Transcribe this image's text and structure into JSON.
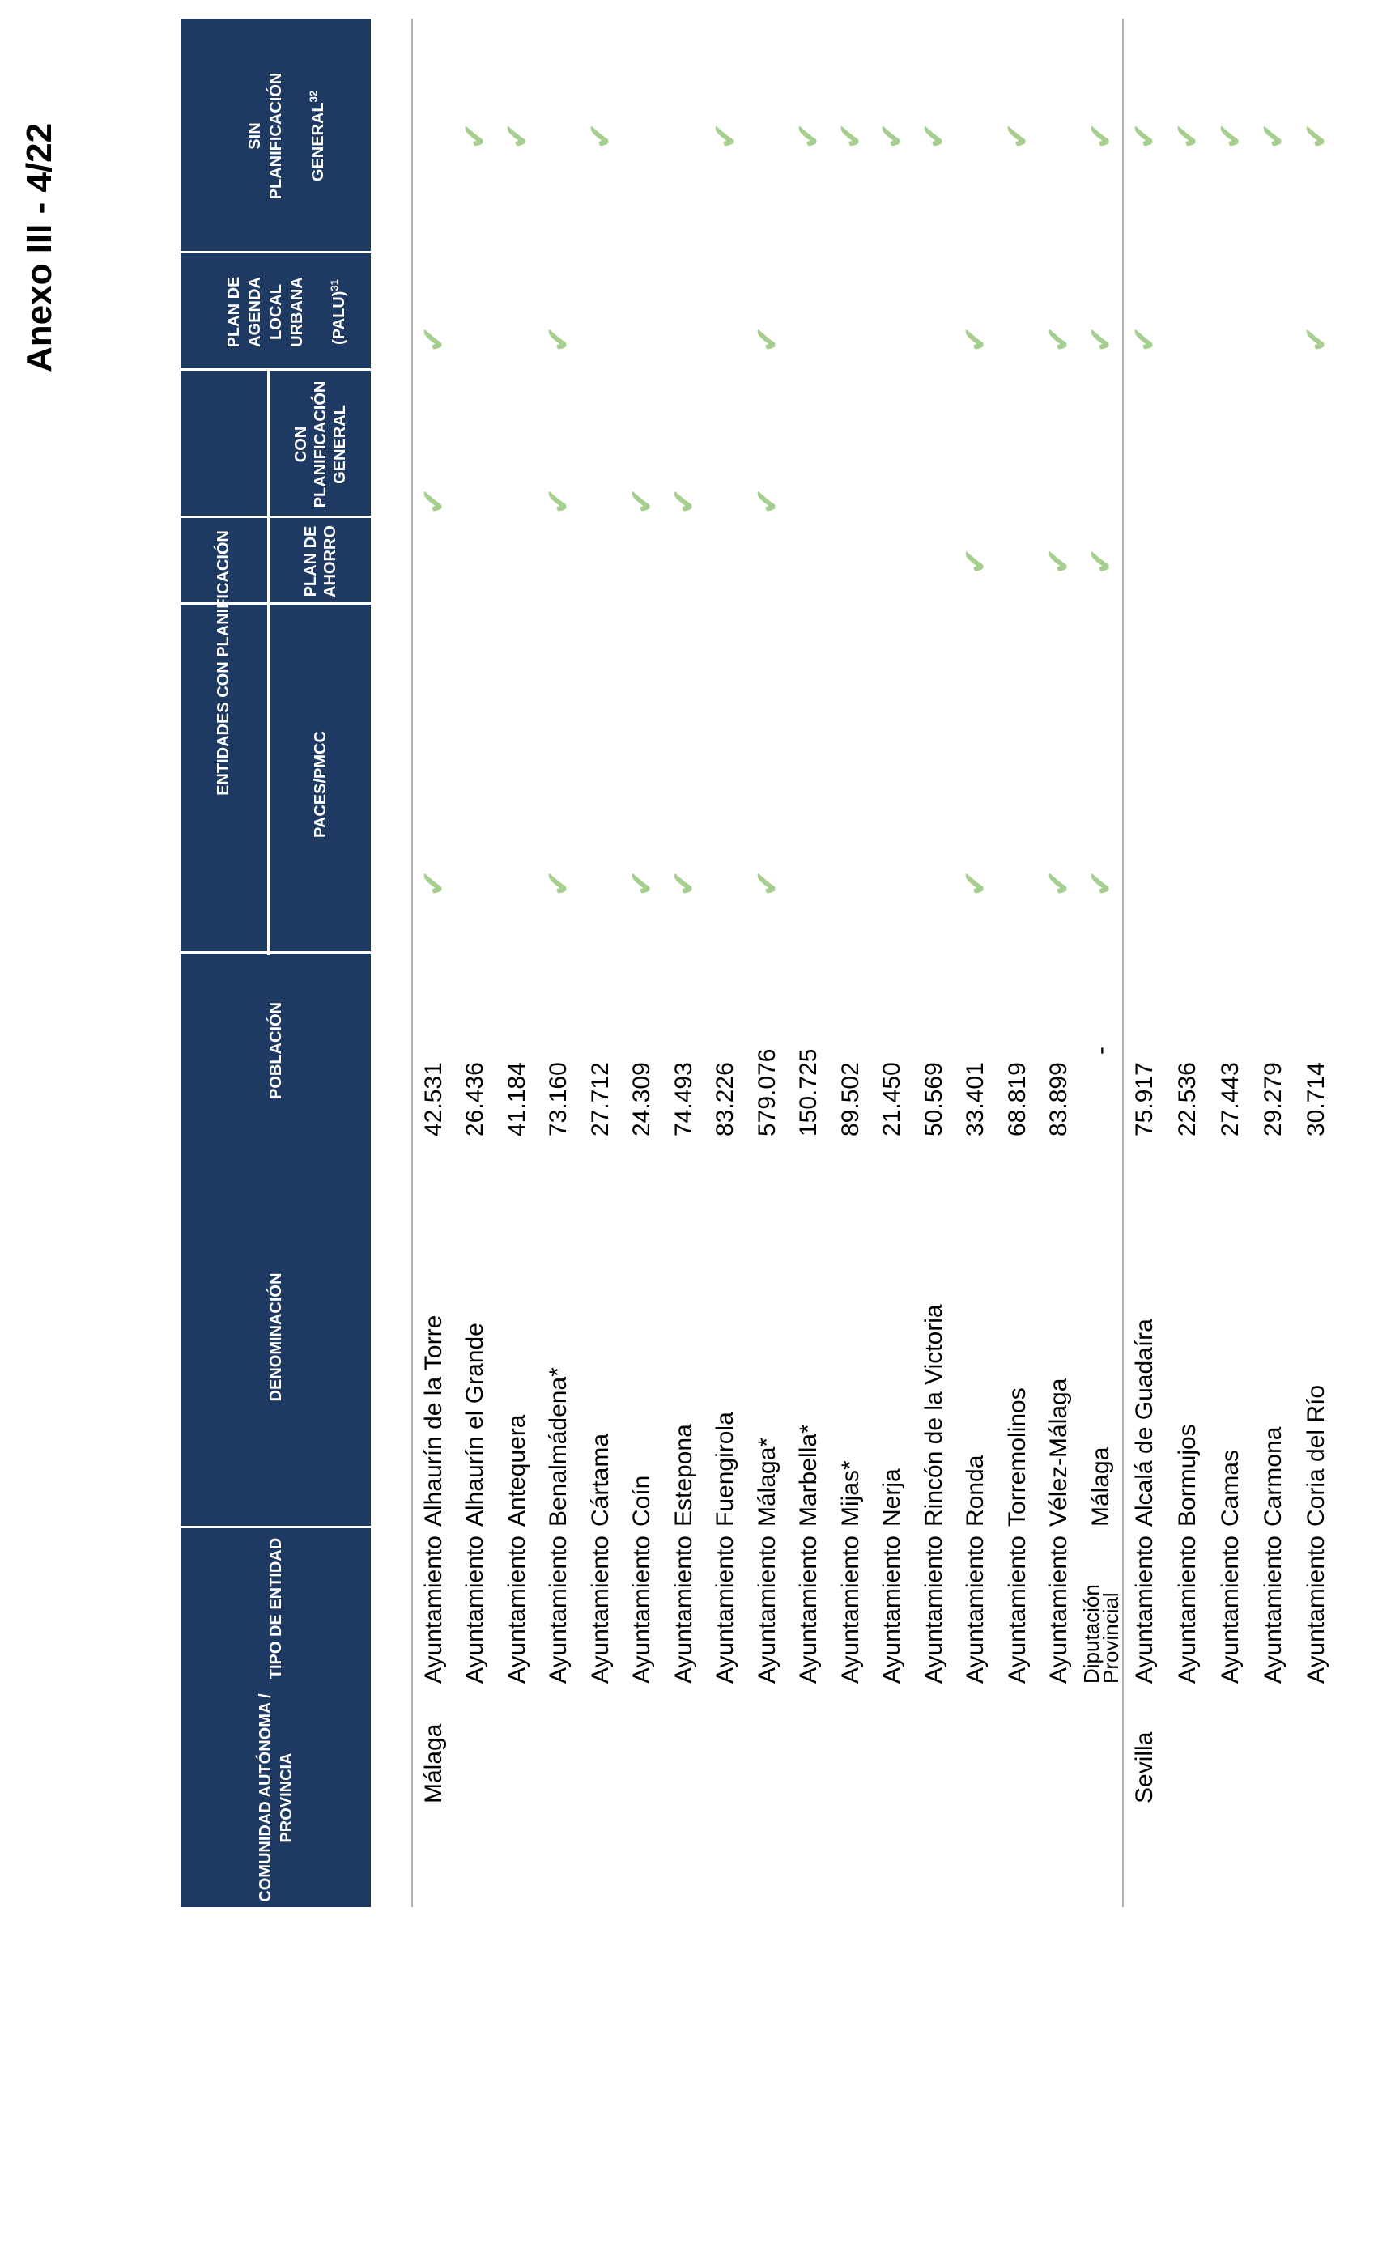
{
  "annex_label": "Anexo III - 4/22",
  "colors": {
    "header_navy": "#1E3A62",
    "check_green": "#A6CE8F",
    "rule_gray": "#AEB3B9",
    "header_text": "#FFFFFF",
    "body_text": "#000000"
  },
  "check_glyph": "✔",
  "table": {
    "headers": {
      "comunidad": "COMUNIDAD AUTÓNOMA /\nPROVINCIA",
      "tipo": "TIPO DE ENTIDAD",
      "denominacion": "DENOMINACIÓN",
      "poblacion": "POBLACIÓN",
      "grupo": "ENTIDADES CON PLANIFICACIÓN",
      "paces": "PACES/PMCC",
      "ahorro": "PLAN DE\nAHORRO",
      "con": "CON\nPLANIFICACIÓN\nGENERAL",
      "palu_lines": "PLAN DE\nAGENDA\nLOCAL\nURBANA",
      "palu_last": "(PALU)",
      "palu_sup": "31",
      "sin_lines": "SIN\nPLANIFICACIÓN",
      "sin_last": "GENERAL",
      "sin_sup": "32"
    },
    "provinces": [
      {
        "name": "Málaga",
        "rows": [
          {
            "tipo": "Ayuntamiento",
            "den": "Alhaurín de la Torre",
            "pob": "42.531",
            "paces": "✔",
            "ahorro": "",
            "con": "✔",
            "palu": "✔",
            "sin": ""
          },
          {
            "tipo": "Ayuntamiento",
            "den": "Alhaurín el Grande",
            "pob": "26.436",
            "paces": "",
            "ahorro": "",
            "con": "",
            "palu": "",
            "sin": "✔"
          },
          {
            "tipo": "Ayuntamiento",
            "den": "Antequera",
            "pob": "41.184",
            "paces": "",
            "ahorro": "",
            "con": "",
            "palu": "",
            "sin": "✔"
          },
          {
            "tipo": "Ayuntamiento",
            "den": "Benalmádena*",
            "pob": "73.160",
            "paces": "✔",
            "ahorro": "",
            "con": "✔",
            "palu": "✔",
            "sin": ""
          },
          {
            "tipo": "Ayuntamiento",
            "den": "Cártama",
            "pob": "27.712",
            "paces": "",
            "ahorro": "",
            "con": "",
            "palu": "",
            "sin": "✔"
          },
          {
            "tipo": "Ayuntamiento",
            "den": "Coín",
            "pob": "24.309",
            "paces": "✔",
            "ahorro": "",
            "con": "✔",
            "palu": "",
            "sin": ""
          },
          {
            "tipo": "Ayuntamiento",
            "den": "Estepona",
            "pob": "74.493",
            "paces": "✔",
            "ahorro": "",
            "con": "✔",
            "palu": "",
            "sin": ""
          },
          {
            "tipo": "Ayuntamiento",
            "den": "Fuengirola",
            "pob": "83.226",
            "paces": "",
            "ahorro": "",
            "con": "",
            "palu": "",
            "sin": "✔"
          },
          {
            "tipo": "Ayuntamiento",
            "den": "Málaga*",
            "pob": "579.076",
            "paces": "✔",
            "ahorro": "",
            "con": "✔",
            "palu": "✔",
            "sin": ""
          },
          {
            "tipo": "Ayuntamiento",
            "den": "Marbella*",
            "pob": "150.725",
            "paces": "",
            "ahorro": "",
            "con": "",
            "palu": "",
            "sin": "✔"
          },
          {
            "tipo": "Ayuntamiento",
            "den": "Mijas*",
            "pob": "89.502",
            "paces": "",
            "ahorro": "",
            "con": "",
            "palu": "",
            "sin": "✔"
          },
          {
            "tipo": "Ayuntamiento",
            "den": "Nerja",
            "pob": "21.450",
            "paces": "",
            "ahorro": "",
            "con": "",
            "palu": "",
            "sin": "✔"
          },
          {
            "tipo": "Ayuntamiento",
            "den": "Rincón de la Victoria",
            "pob": "50.569",
            "paces": "",
            "ahorro": "",
            "con": "",
            "palu": "",
            "sin": "✔"
          },
          {
            "tipo": "Ayuntamiento",
            "den": "Ronda",
            "pob": "33.401",
            "paces": "✔",
            "ahorro": "✔",
            "con": "",
            "palu": "✔",
            "sin": ""
          },
          {
            "tipo": "Ayuntamiento",
            "den": "Torremolinos",
            "pob": "68.819",
            "paces": "",
            "ahorro": "",
            "con": "",
            "palu": "",
            "sin": "✔"
          },
          {
            "tipo": "Ayuntamiento",
            "den": "Vélez-Málaga",
            "pob": "83.899",
            "paces": "✔",
            "ahorro": "✔",
            "con": "",
            "palu": "✔",
            "sin": ""
          },
          {
            "tipo": "Diputación Provincial",
            "den": "Málaga",
            "pob": "-",
            "paces": "✔",
            "ahorro": "✔",
            "con": "",
            "palu": "✔",
            "sin": "✔"
          }
        ]
      },
      {
        "name": "Sevilla",
        "rows": [
          {
            "tipo": "Ayuntamiento",
            "den": "Alcalá de Guadaíra",
            "pob": "75.917",
            "paces": "",
            "ahorro": "",
            "con": "",
            "palu": "✔",
            "sin": "✔"
          },
          {
            "tipo": "Ayuntamiento",
            "den": "Bormujos",
            "pob": "22.536",
            "paces": "",
            "ahorro": "",
            "con": "",
            "palu": "",
            "sin": "✔"
          },
          {
            "tipo": "Ayuntamiento",
            "den": "Camas",
            "pob": "27.443",
            "paces": "",
            "ahorro": "",
            "con": "",
            "palu": "",
            "sin": "✔"
          },
          {
            "tipo": "Ayuntamiento",
            "den": "Carmona",
            "pob": "29.279",
            "paces": "",
            "ahorro": "",
            "con": "",
            "palu": "",
            "sin": "✔"
          },
          {
            "tipo": "Ayuntamiento",
            "den": "Coria del Río",
            "pob": "30.714",
            "paces": "",
            "ahorro": "",
            "con": "",
            "palu": "✔",
            "sin": "✔"
          }
        ]
      }
    ]
  }
}
